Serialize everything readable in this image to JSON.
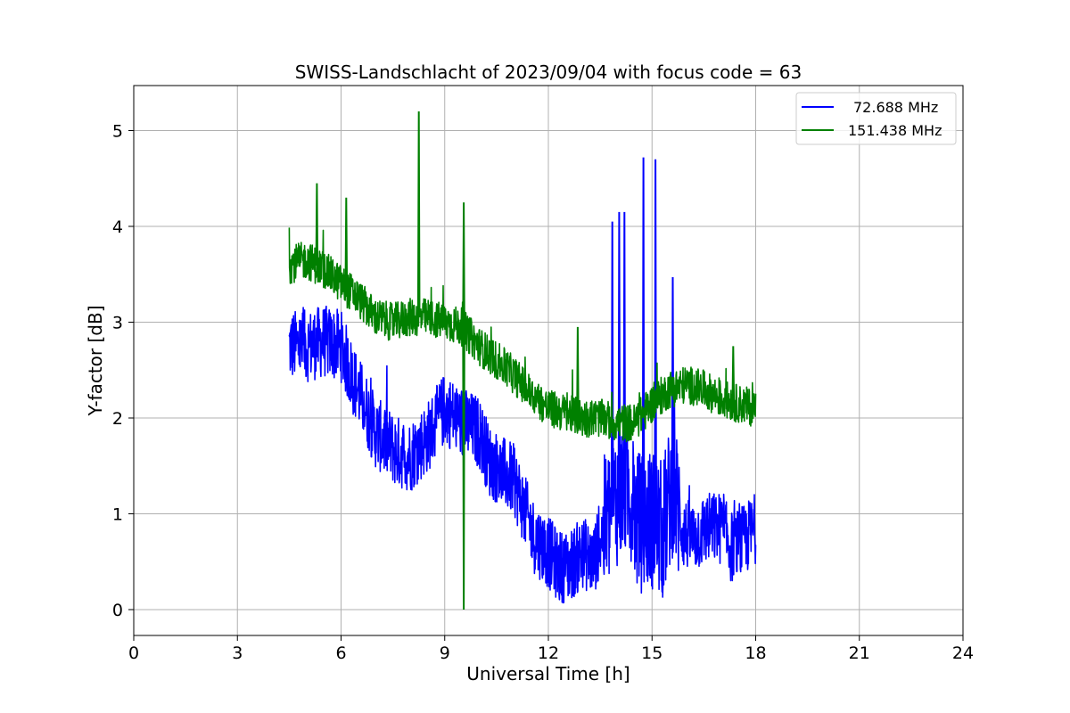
{
  "chart_data": {
    "type": "line",
    "title": "SWISS-Landschlacht of 2023/09/04 with focus code = 63",
    "xlabel": "Universal Time [h]",
    "ylabel": "Y-factor [dB]",
    "xlim": [
      0,
      24
    ],
    "ylim": [
      -0.27,
      5.47
    ],
    "xticks": [
      0,
      3,
      6,
      9,
      12,
      15,
      18,
      21,
      24
    ],
    "yticks": [
      0,
      1,
      2,
      3,
      4,
      5
    ],
    "grid": true,
    "legend_position": "top-right",
    "series": [
      {
        "name": "72.688 MHz",
        "color": "#0000ff",
        "x": [
          4.5,
          5.0,
          5.5,
          6.0,
          6.3,
          6.6,
          7.0,
          7.3,
          7.6,
          8.0,
          8.5,
          9.0,
          9.5,
          10.0,
          10.3,
          10.6,
          11.0,
          11.3,
          11.6,
          12.0,
          12.3,
          12.6,
          13.0,
          13.3,
          13.6,
          14.0,
          14.3,
          14.6,
          15.0,
          15.3,
          15.6,
          15.9,
          16.2,
          16.6,
          17.0,
          17.3,
          17.6,
          18.0
        ],
        "y": [
          2.75,
          2.75,
          2.8,
          2.75,
          2.45,
          2.2,
          1.85,
          1.75,
          1.65,
          1.6,
          1.8,
          2.1,
          1.95,
          1.85,
          1.55,
          1.45,
          1.35,
          1.05,
          0.75,
          0.6,
          0.45,
          0.45,
          0.6,
          0.5,
          0.85,
          1.2,
          1.3,
          0.9,
          0.95,
          0.8,
          1.3,
          0.8,
          0.75,
          0.85,
          0.85,
          0.65,
          0.7,
          0.85
        ],
        "spikes": [
          {
            "x": 13.85,
            "y": 4.05
          },
          {
            "x": 14.05,
            "y": 4.15
          },
          {
            "x": 14.2,
            "y": 4.15
          },
          {
            "x": 14.75,
            "y": 4.72
          },
          {
            "x": 15.1,
            "y": 4.7
          },
          {
            "x": 15.6,
            "y": 3.47
          }
        ]
      },
      {
        "name": "151.438 MHz",
        "color": "#008000",
        "x": [
          4.5,
          5.0,
          5.5,
          6.0,
          6.5,
          7.0,
          7.5,
          8.0,
          8.5,
          9.0,
          9.5,
          10.0,
          10.5,
          11.0,
          11.5,
          12.0,
          12.5,
          13.0,
          13.5,
          14.0,
          14.5,
          15.0,
          15.5,
          16.0,
          16.5,
          17.0,
          17.5,
          18.0
        ],
        "y": [
          3.6,
          3.65,
          3.55,
          3.4,
          3.25,
          3.05,
          3.0,
          3.05,
          3.05,
          3.0,
          2.95,
          2.75,
          2.6,
          2.45,
          2.25,
          2.1,
          2.05,
          2.0,
          2.0,
          1.95,
          1.95,
          2.15,
          2.3,
          2.35,
          2.3,
          2.2,
          2.15,
          2.1
        ],
        "spikes": [
          {
            "x": 5.3,
            "y": 4.45
          },
          {
            "x": 6.15,
            "y": 4.3
          },
          {
            "x": 8.25,
            "y": 5.2
          },
          {
            "x": 9.55,
            "y": 4.25
          },
          {
            "x": 9.55,
            "y": 0.0
          },
          {
            "x": 12.85,
            "y": 2.95
          },
          {
            "x": 17.35,
            "y": 2.75
          }
        ]
      }
    ]
  }
}
